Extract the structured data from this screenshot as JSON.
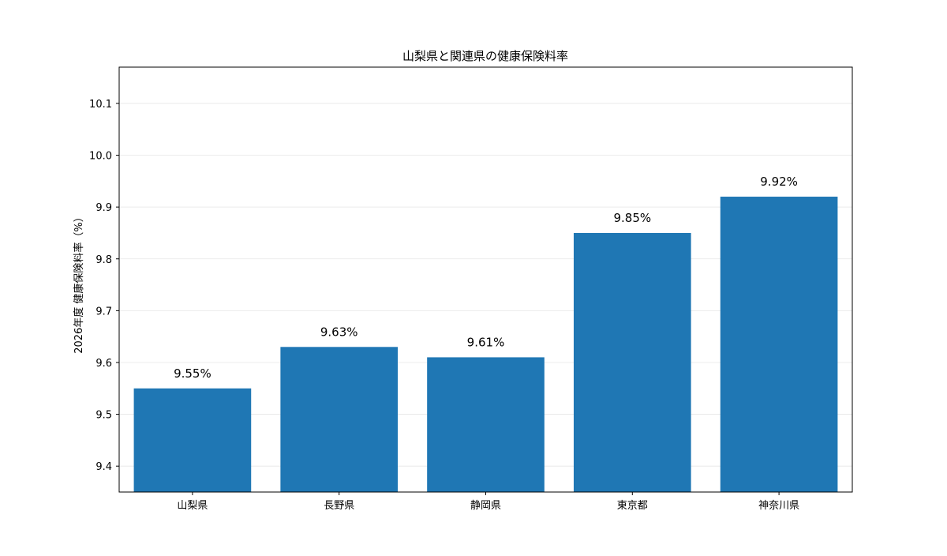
{
  "chart_data": {
    "type": "bar",
    "title": "山梨県と関連県の健康保険料率",
    "xlabel": "",
    "ylabel": "2026年度 健康保険料率（%）",
    "categories": [
      "山梨県",
      "長野県",
      "静岡県",
      "東京都",
      "神奈川県"
    ],
    "values": [
      9.55,
      9.63,
      9.61,
      9.85,
      9.92
    ],
    "data_labels": [
      "9.55%",
      "9.63%",
      "9.61%",
      "9.85%",
      "9.92%"
    ],
    "ylim": [
      9.35,
      10.17
    ],
    "yticks": [
      9.4,
      9.5,
      9.6,
      9.7,
      9.8,
      9.9,
      10.0,
      10.1
    ],
    "ytick_labels": [
      "9.4",
      "9.5",
      "9.6",
      "9.7",
      "9.8",
      "9.9",
      "10.0",
      "10.1"
    ],
    "grid": true,
    "colors": {
      "bar": "#1f77b4",
      "grid": "#e6e6e6",
      "axis": "#000000"
    }
  }
}
